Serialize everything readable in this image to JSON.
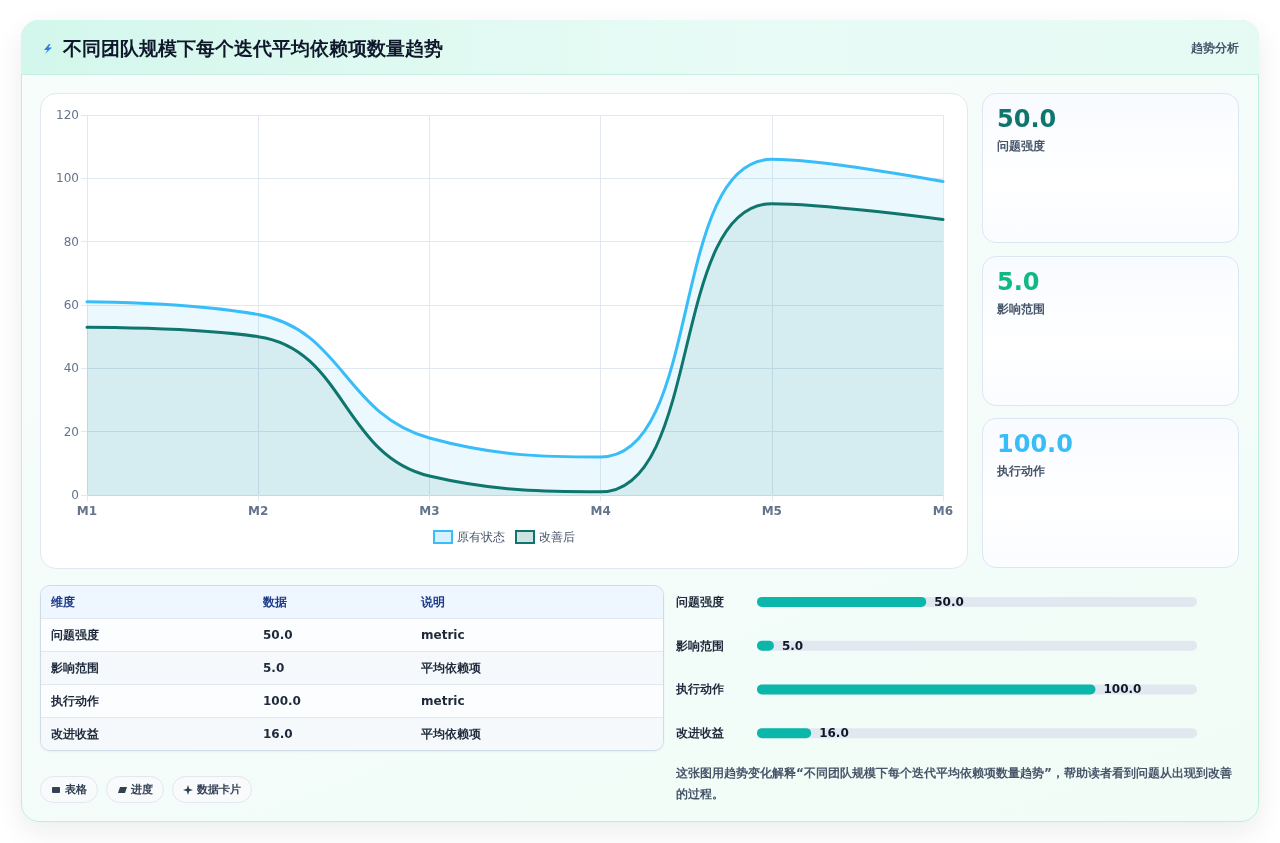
{
  "chart_data": [
    {
      "type": "other",
      "title": "不同团队规模下每个迭代平均依赖项数量趋势",
      "subtitle": "趋势分析"
    },
    {
      "type": "area",
      "categories": [
        "M1",
        "M2",
        "M3",
        "M4",
        "M5",
        "M6"
      ],
      "series": [
        {
          "name": "原有状态",
          "color": "#38bdf8",
          "values": [
            61,
            57,
            18,
            12,
            106,
            99
          ]
        },
        {
          "name": "改善后",
          "color": "#0f766e",
          "values": [
            53,
            50,
            6,
            1,
            92,
            87
          ]
        }
      ],
      "ylim": [
        0,
        120
      ],
      "yticks": [
        0,
        20,
        40,
        60,
        80,
        100,
        120
      ],
      "grid": true,
      "legend": "bottom",
      "marker": "none",
      "line_style": "solid"
    },
    {
      "type": "other",
      "annotations": [
        "50.0",
        "问题强度",
        "5.0",
        "影响范围",
        "100.0",
        "执行动作"
      ]
    },
    {
      "type": "other",
      "annotations": [
        "维度",
        "数据",
        "说明",
        "问题强度",
        "50.0",
        "metric",
        "影响范围",
        "5.0",
        "平均依赖项",
        "执行动作",
        "100.0",
        "metric",
        "改进收益",
        "16.0",
        "平均依赖项"
      ]
    },
    {
      "type": "bar",
      "orientation": "horizontal",
      "categories": [
        "问题强度",
        "影响范围",
        "执行动作",
        "改进收益"
      ],
      "values": [
        50,
        5,
        100,
        16
      ],
      "value_labels": [
        "50.0",
        "5.0",
        "100.0",
        "16.0"
      ],
      "color": "#0bb7aa",
      "xlim": [
        0,
        130
      ],
      "tick_labels": "y",
      "annotations": [
        "这张图用趋势变化解释“不同团队规模下每个迭代平均依赖项数量趋势”，帮助读者看到问题从出现到改善的过程。"
      ]
    },
    {
      "type": "other",
      "annotations": [
        "表格",
        "进度",
        "数据卡片"
      ]
    }
  ]
}
